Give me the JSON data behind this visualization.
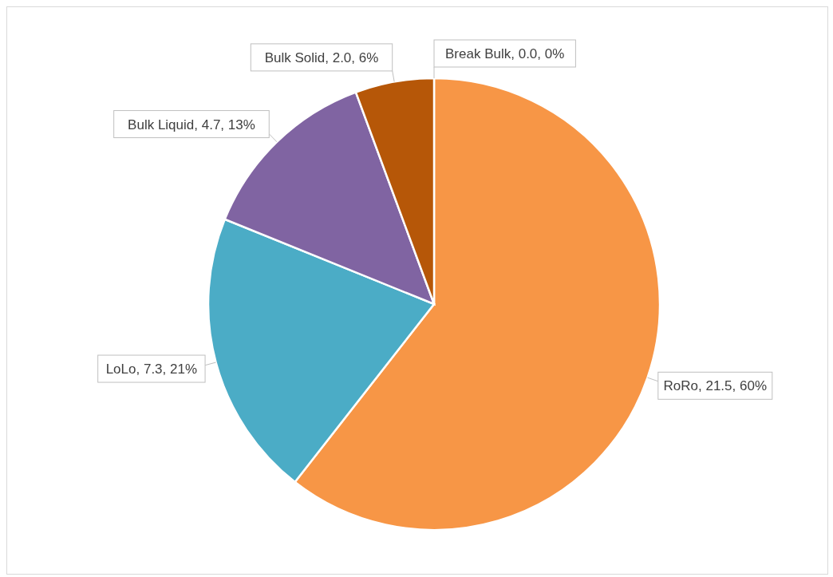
{
  "chart_data": {
    "type": "pie",
    "categories": [
      "RoRo",
      "LoLo",
      "Bulk Liquid",
      "Bulk Solid",
      "Break Bulk"
    ],
    "values": [
      21.5,
      7.3,
      4.7,
      2.0,
      0.0
    ],
    "colors": [
      "#f79646",
      "#4bacc6",
      "#8064a2",
      "#b65708",
      "#f79646"
    ],
    "value_labels": [
      ", 21.5, 60%",
      ", 7.3, 21%",
      ", 4.7, 13%",
      ", 2.0, 6%",
      ", 0.0, 0%"
    ],
    "legend": false
  }
}
